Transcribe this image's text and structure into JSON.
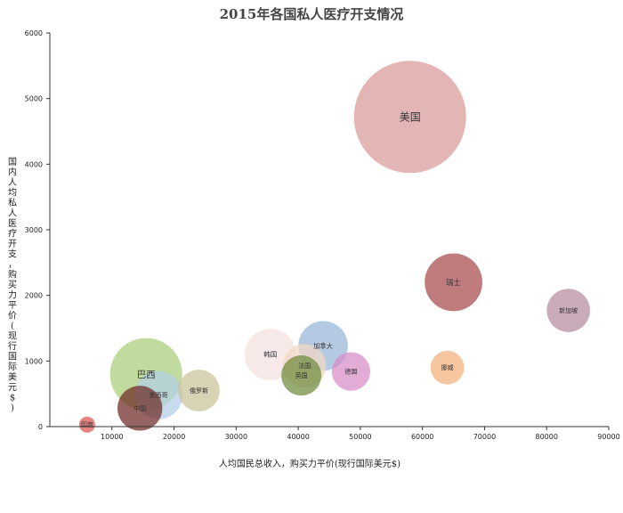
{
  "chart_data": {
    "type": "bubble",
    "title": "2015年各国私人医疗开支情况",
    "xlabel": "人均国民总收入，购买力平价(现行国际美元$)",
    "ylabel": "国内人均私人医疗开支，购买力平价(现行国际美元$)",
    "xlim": [
      0,
      90000
    ],
    "ylim": [
      0,
      6000
    ],
    "x_ticks": [
      10000,
      20000,
      30000,
      40000,
      50000,
      60000,
      70000,
      80000,
      90000
    ],
    "y_ticks": [
      0,
      1000,
      2000,
      3000,
      4000,
      5000,
      6000
    ],
    "x_tick_labels": [
      "10000",
      "20000",
      "30000",
      "40000",
      "50000",
      "60000",
      "70000",
      "80000",
      "90000"
    ],
    "y_tick_labels": [
      "0",
      "1000",
      "2000",
      "3000",
      "4000",
      "5000",
      "6000"
    ],
    "grid": false,
    "points": [
      {
        "label": "印度",
        "x": 6000,
        "y": 30,
        "size": 1.0,
        "color": "#d9534f"
      },
      {
        "label": "巴西",
        "x": 15500,
        "y": 800,
        "size": 4.5,
        "color": "#a9cc77"
      },
      {
        "label": "俄罗斯",
        "x": 24000,
        "y": 550,
        "size": 2.6,
        "color": "#cbc29a"
      },
      {
        "label": "墨西哥",
        "x": 17500,
        "y": 480,
        "size": 3.0,
        "color": "#b2cfe8"
      },
      {
        "label": "中国",
        "x": 14500,
        "y": 280,
        "size": 2.8,
        "color": "#6e2a24"
      },
      {
        "label": "韩国",
        "x": 35500,
        "y": 1100,
        "size": 3.2,
        "color": "#f3e0df"
      },
      {
        "label": "英国",
        "x": 40500,
        "y": 780,
        "size": 2.5,
        "color": "#6e8a3a"
      },
      {
        "label": "加拿大",
        "x": 44000,
        "y": 1230,
        "size": 3.1,
        "color": "#97b5d8"
      },
      {
        "label": "法国",
        "x": 41000,
        "y": 930,
        "size": 2.7,
        "color": "#f1d8c4"
      },
      {
        "label": "德国",
        "x": 48500,
        "y": 840,
        "size": 2.4,
        "color": "#d88cc6"
      },
      {
        "label": "美国",
        "x": 58000,
        "y": 4720,
        "size": 7.0,
        "color": "#d89a98"
      },
      {
        "label": "瑞士",
        "x": 65000,
        "y": 2200,
        "size": 3.6,
        "color": "#a8484a"
      },
      {
        "label": "挪威",
        "x": 64000,
        "y": 900,
        "size": 2.1,
        "color": "#f1b07a"
      },
      {
        "label": "新加坡",
        "x": 83500,
        "y": 1770,
        "size": 2.7,
        "color": "#b58aa0"
      }
    ]
  }
}
